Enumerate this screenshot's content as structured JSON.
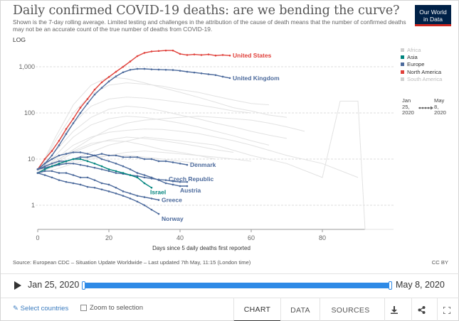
{
  "header": {
    "title": "Daily confirmed COVID-19 deaths: are we bending the curve?",
    "subtitle": "Shown is the 7-day rolling average. Limited testing and challenges in the attribution of the cause of death means that the number of confirmed deaths may not be an accurate count of the true number of deaths from COVID-19.",
    "logo_line1": "Our World",
    "logo_line2": "in Data",
    "scale_toggle": "LOG"
  },
  "legend": {
    "items": [
      {
        "label": "Africa",
        "color": "#cfcfcf"
      },
      {
        "label": "Asia",
        "color": "#00847e"
      },
      {
        "label": "Europe",
        "color": "#4c6a9c"
      },
      {
        "label": "North America",
        "color": "#e0413b"
      },
      {
        "label": "South America",
        "color": "#cfcfcf"
      }
    ],
    "time_start": "Jan\n25,\n2020",
    "time_end": "May\n8,\n2020"
  },
  "chart_data": {
    "type": "line",
    "xlabel": "Days since 5 daily deaths first reported",
    "ylabel": "",
    "log_scale": true,
    "xlim": [
      0,
      100
    ],
    "ylim": [
      0.3,
      3000
    ],
    "x_ticks": [
      "0",
      "20",
      "40",
      "60",
      "80"
    ],
    "y_ticks": [
      "1",
      "10",
      "100",
      "1,000"
    ],
    "grid": "horizontal dashed",
    "series": [
      {
        "name": "United States",
        "region": "North America",
        "color": "#e0413b",
        "x": [
          0,
          2,
          4,
          6,
          8,
          10,
          12,
          14,
          16,
          18,
          20,
          22,
          24,
          26,
          28,
          30,
          32,
          34,
          36,
          38,
          40,
          42,
          44,
          46,
          48,
          50,
          52,
          54
        ],
        "y": [
          6,
          10,
          15,
          25,
          45,
          75,
          130,
          200,
          320,
          460,
          600,
          780,
          1000,
          1300,
          1700,
          2000,
          2150,
          2200,
          2250,
          2250,
          1900,
          1800,
          1850,
          1800,
          1850,
          1750,
          1800,
          1750
        ]
      },
      {
        "name": "United Kingdom",
        "region": "Europe",
        "color": "#4c6a9c",
        "x": [
          0,
          2,
          4,
          6,
          8,
          10,
          12,
          14,
          16,
          18,
          20,
          22,
          24,
          26,
          28,
          30,
          32,
          34,
          36,
          38,
          40,
          42,
          44,
          46,
          48,
          50,
          52,
          54
        ],
        "y": [
          6,
          8,
          12,
          20,
          35,
          60,
          100,
          160,
          250,
          350,
          480,
          620,
          760,
          860,
          900,
          900,
          880,
          870,
          860,
          850,
          820,
          780,
          750,
          720,
          690,
          660,
          610,
          570
        ]
      },
      {
        "name": "Denmark",
        "region": "Europe",
        "color": "#4c6a9c",
        "x": [
          0,
          2,
          4,
          6,
          8,
          10,
          12,
          14,
          16,
          18,
          20,
          22,
          24,
          26,
          28,
          30,
          32,
          34,
          36,
          38,
          40,
          42
        ],
        "y": [
          6,
          7,
          8,
          9,
          9,
          10,
          11,
          11,
          12,
          13,
          12,
          12,
          11,
          11,
          11,
          10,
          10,
          9,
          9,
          8.5,
          8,
          7.5
        ]
      },
      {
        "name": "Czech Republic",
        "region": "Europe",
        "color": "#4c6a9c",
        "x": [
          0,
          2,
          4,
          6,
          8,
          10,
          12,
          14,
          16,
          18,
          20,
          22,
          24,
          26,
          28,
          30,
          32,
          34,
          36,
          38,
          40,
          42
        ],
        "y": [
          6,
          6.5,
          7,
          7.5,
          8,
          8,
          7.5,
          7,
          6.5,
          6,
          5.5,
          5,
          4.8,
          4.5,
          4.3,
          4,
          3.8,
          3.6,
          3.5,
          3.3,
          3.2,
          3.2
        ]
      },
      {
        "name": "Austria",
        "region": "Europe",
        "color": "#4c6a9c",
        "x": [
          0,
          2,
          4,
          6,
          8,
          10,
          12,
          14,
          16,
          18,
          20,
          22,
          24,
          26,
          28,
          30,
          32,
          34,
          36,
          38,
          40,
          42
        ],
        "y": [
          6,
          8,
          10,
          12,
          13,
          14,
          14,
          13,
          12,
          10,
          9,
          8,
          7,
          6,
          5,
          4.5,
          4,
          3.5,
          3,
          2.8,
          2.6,
          2.6
        ]
      },
      {
        "name": "Israel",
        "region": "Asia",
        "color": "#00847e",
        "x": [
          0,
          2,
          4,
          6,
          8,
          10,
          12,
          14,
          16,
          18,
          20,
          22,
          24,
          26,
          28,
          30,
          32
        ],
        "y": [
          5,
          6,
          7,
          8,
          9,
          10,
          10,
          9,
          8,
          7,
          6,
          5.5,
          5,
          4.5,
          4,
          3,
          2.4
        ]
      },
      {
        "name": "Greece",
        "region": "Europe",
        "color": "#4c6a9c",
        "x": [
          0,
          2,
          4,
          6,
          8,
          10,
          12,
          14,
          16,
          18,
          20,
          22,
          24,
          26,
          28,
          30,
          32,
          34
        ],
        "y": [
          5,
          5.5,
          5.5,
          5,
          5,
          4.5,
          4,
          4,
          3.5,
          3,
          2.8,
          2.4,
          2,
          1.8,
          1.6,
          1.5,
          1.4,
          1.3
        ]
      },
      {
        "name": "Norway",
        "region": "Europe",
        "color": "#4c6a9c",
        "x": [
          0,
          2,
          4,
          6,
          8,
          10,
          12,
          14,
          16,
          18,
          20,
          22,
          24,
          26,
          28,
          30,
          32,
          34
        ],
        "y": [
          5,
          4.5,
          4,
          3.5,
          3.2,
          3,
          2.8,
          2.5,
          2.4,
          2.2,
          2,
          1.8,
          1.6,
          1.4,
          1.2,
          1,
          0.8,
          0.65
        ]
      }
    ],
    "background_series": [
      {
        "region": "Africa",
        "x": [
          0,
          10,
          20,
          30,
          40,
          50,
          60,
          70,
          80,
          85,
          88,
          90,
          92,
          95,
          98,
          100
        ],
        "y": [
          5,
          10,
          20,
          30,
          25,
          20,
          12,
          8,
          4,
          180,
          180,
          180,
          0.3,
          0.3,
          0.3,
          0.3
        ]
      },
      {
        "region": "other",
        "x": [
          0,
          5,
          10,
          15,
          20,
          25,
          30,
          35,
          40,
          45,
          50,
          55,
          60,
          65,
          70
        ],
        "y": [
          5,
          30,
          150,
          400,
          600,
          550,
          450,
          350,
          280,
          220,
          170,
          130,
          110,
          90,
          80
        ]
      },
      {
        "region": "other",
        "x": [
          0,
          5,
          10,
          15,
          20,
          25,
          30,
          35,
          40,
          45,
          50,
          55,
          60,
          65
        ],
        "y": [
          5,
          25,
          100,
          250,
          400,
          450,
          420,
          380,
          320,
          280,
          230,
          190,
          160,
          150
        ]
      },
      {
        "region": "other",
        "x": [
          0,
          5,
          10,
          15,
          20,
          25,
          30,
          35,
          40,
          45,
          50,
          55,
          60
        ],
        "y": [
          6,
          20,
          60,
          140,
          200,
          220,
          210,
          190,
          170,
          150,
          130,
          110,
          100
        ]
      },
      {
        "region": "other",
        "x": [
          0,
          5,
          10,
          15,
          20,
          25,
          30,
          35,
          40,
          45,
          50,
          55,
          60,
          65,
          70
        ],
        "y": [
          5,
          15,
          40,
          80,
          120,
          140,
          130,
          110,
          90,
          75,
          60,
          50,
          40,
          33,
          28
        ]
      },
      {
        "region": "other",
        "x": [
          0,
          5,
          10,
          15,
          20,
          25,
          30,
          35,
          40,
          45,
          50,
          55,
          60,
          65
        ],
        "y": [
          5,
          12,
          30,
          55,
          75,
          85,
          80,
          70,
          60,
          50,
          40,
          32,
          25,
          20
        ]
      },
      {
        "region": "other",
        "x": [
          0,
          5,
          10,
          15,
          20,
          25,
          30,
          35,
          40,
          45,
          50,
          55,
          60,
          70,
          80,
          90
        ],
        "y": [
          5,
          10,
          20,
          30,
          38,
          42,
          45,
          44,
          40,
          36,
          30,
          25,
          20,
          12,
          8,
          4
        ]
      },
      {
        "region": "other",
        "x": [
          0,
          5,
          10,
          15,
          20,
          25,
          30,
          35,
          40,
          45,
          50,
          55
        ],
        "y": [
          5,
          8,
          14,
          20,
          26,
          30,
          28,
          25,
          22,
          19,
          16,
          14
        ]
      },
      {
        "region": "other",
        "x": [
          0,
          5,
          10,
          15,
          20,
          25,
          30,
          35,
          40,
          45,
          50
        ],
        "y": [
          6,
          9,
          15,
          22,
          25,
          24,
          20,
          16,
          14,
          12,
          10
        ]
      },
      {
        "region": "other",
        "x": [
          0,
          5,
          10,
          15,
          20,
          25,
          30,
          35,
          40,
          45,
          50,
          55,
          60,
          65,
          70,
          75
        ],
        "y": [
          5,
          9,
          16,
          28,
          45,
          60,
          70,
          75,
          80,
          85,
          80,
          75,
          70,
          60,
          50,
          40
        ]
      },
      {
        "region": "other",
        "x": [
          0,
          5,
          10,
          15,
          20,
          25,
          30,
          35,
          40,
          45
        ],
        "y": [
          5,
          7,
          9,
          11,
          12,
          12,
          11,
          10,
          9,
          8
        ]
      },
      {
        "region": "other",
        "x": [
          0,
          5,
          10,
          15,
          20,
          25,
          30,
          35,
          40,
          45,
          50,
          55,
          60
        ],
        "y": [
          5,
          6,
          8,
          10,
          12,
          14,
          15,
          14,
          13,
          12,
          11,
          10,
          9
        ]
      }
    ]
  },
  "source": {
    "text": "Source: European CDC – Situation Update Worldwide – Last updated 7th May, 11:15 (London time)",
    "license": "CC BY"
  },
  "timeline": {
    "start": "Jan 25, 2020",
    "end": "May 8, 2020"
  },
  "footer": {
    "select_countries": "Select countries",
    "zoom_label": "Zoom to selection",
    "tabs": [
      "CHART",
      "DATA",
      "SOURCES"
    ],
    "active_tab": "CHART"
  }
}
